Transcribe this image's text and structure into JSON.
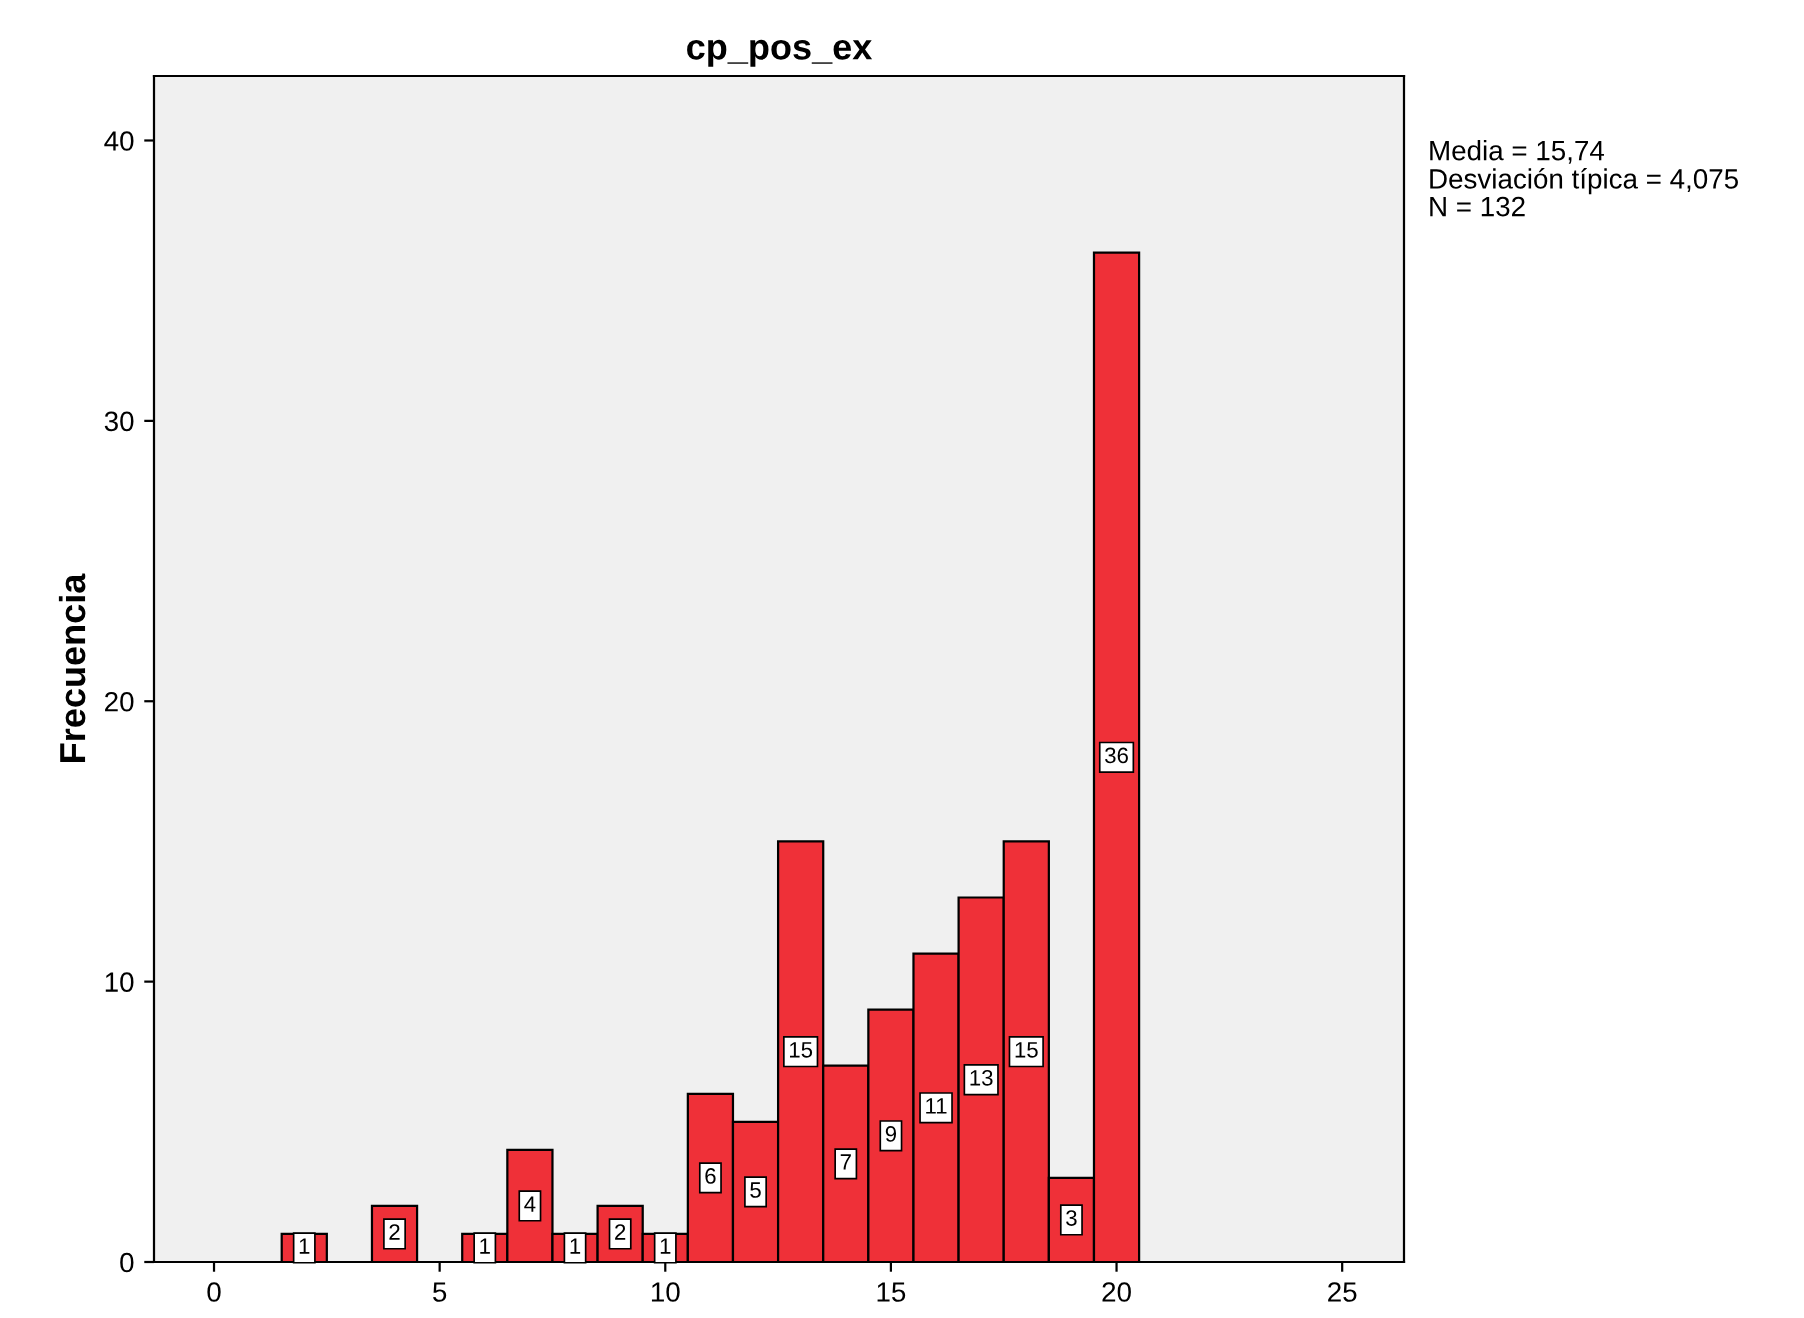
{
  "chart_data": {
    "type": "histogram",
    "title": "cp_pos_ex",
    "ylabel": "Frecuencia",
    "bins": [
      1.5,
      2.5,
      3.5,
      4.5,
      5.5,
      6.5,
      7.5,
      8.5,
      9.5,
      10.5,
      11.5,
      12.5,
      13.5,
      14.5,
      15.5,
      16.5,
      17.5,
      18.5,
      19.5,
      20.5
    ],
    "values": [
      1,
      0,
      2,
      0,
      1,
      4,
      1,
      2,
      1,
      6,
      5,
      15,
      7,
      9,
      11,
      13,
      15,
      3,
      36
    ],
    "value_labels": [
      "1",
      null,
      "2",
      null,
      "1",
      "4",
      "1",
      "2",
      "1",
      "6",
      "5",
      "15",
      "7",
      "9",
      "11",
      "13",
      "15",
      "3",
      "36"
    ],
    "color": "#ef3038",
    "xlim": [
      -1.33,
      26.37
    ],
    "ylim": [
      0,
      42.3
    ],
    "xticks": [
      0,
      5,
      10,
      15,
      20,
      25
    ],
    "yticks": [
      0,
      10,
      20,
      30,
      40
    ],
    "grid": false,
    "annotations": [
      "Media = 15,74",
      "Desviación típica = 4,075",
      "N = 132"
    ]
  }
}
